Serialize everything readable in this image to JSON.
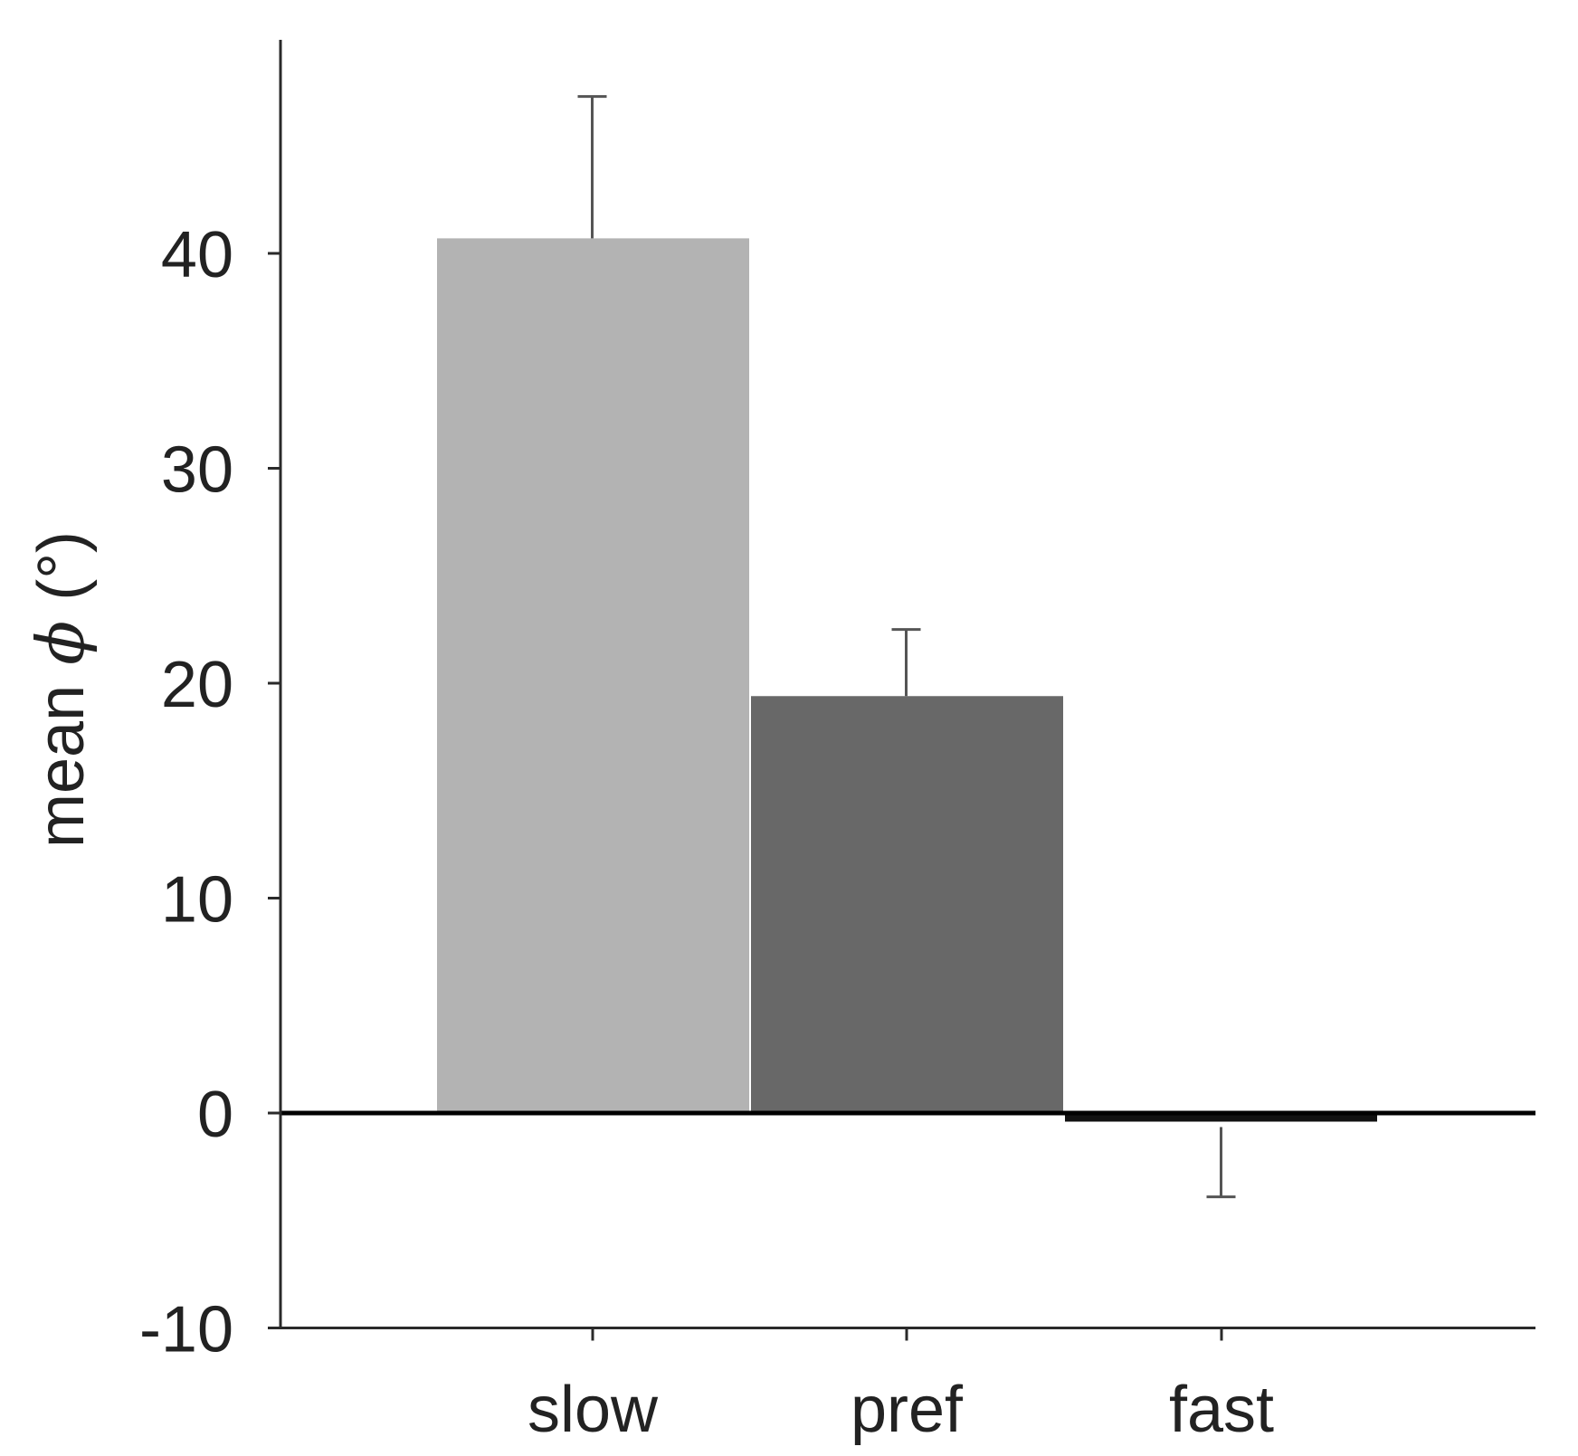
{
  "chart_data": {
    "type": "bar",
    "title": "",
    "xlabel": "",
    "ylabel": "mean",
    "ylabel_symbol": "ϕ",
    "ylabel_unit": "(°)",
    "categories": [
      "slow",
      "pref",
      "fast"
    ],
    "values": [
      40.7,
      19.4,
      -0.4
    ],
    "error_bars": [
      6.6,
      3.1,
      3.5
    ],
    "error_direction": [
      "up",
      "up",
      "down"
    ],
    "colors": [
      "#b3b3b3",
      "#686868",
      "#111111"
    ],
    "ylim": [
      -10,
      50
    ],
    "yticks": [
      -10,
      0,
      10,
      20,
      30,
      40
    ],
    "ytick_labels": [
      "-10",
      "0",
      "10",
      "20",
      "30",
      "40"
    ],
    "grid": false,
    "legend": "none"
  }
}
